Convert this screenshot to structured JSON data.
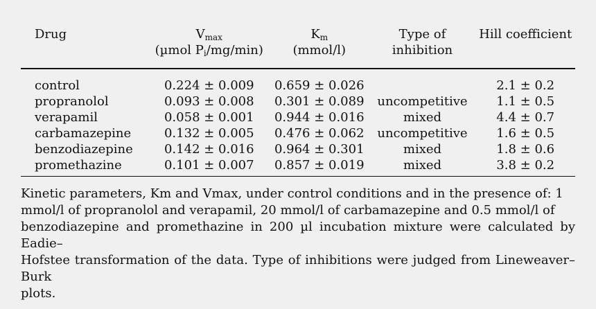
{
  "table": {
    "headers": {
      "drug": "Drug",
      "vmax_symbol": "V",
      "vmax_sub": "max",
      "vmax_unit": "(µmol P",
      "vmax_unit_sub": "i",
      "vmax_unit_tail": "/mg/min)",
      "km_symbol": "K",
      "km_sub": "m",
      "km_unit": "(mmol/l)",
      "type_line1": "Type of",
      "type_line2": "inhibition",
      "hill": "Hill coefficient"
    },
    "rows": [
      {
        "drug": "control",
        "vmax": "0.224 ± 0.009",
        "km": "0.659 ± 0.026",
        "type": "",
        "hill": "2.1 ± 0.2"
      },
      {
        "drug": "propranolol",
        "vmax": "0.093 ± 0.008",
        "km": "0.301 ± 0.089",
        "type": "uncompetitive",
        "hill": "1.1 ± 0.5"
      },
      {
        "drug": "verapamil",
        "vmax": "0.058 ± 0.001",
        "km": "0.944 ± 0.016",
        "type": "mixed",
        "hill": "4.4 ± 0.7"
      },
      {
        "drug": "carbamazepine",
        "vmax": "0.132 ± 0.005",
        "km": "0.476 ± 0.062",
        "type": "uncompetitive",
        "hill": "1.6 ± 0.5"
      },
      {
        "drug": "benzodiazepine",
        "vmax": "0.142 ± 0.016",
        "km": "0.964 ± 0.301",
        "type": "mixed",
        "hill": "1.8 ± 0.6"
      },
      {
        "drug": "promethazine",
        "vmax": "0.101 ± 0.007",
        "km": "0.857 ± 0.019",
        "type": "mixed",
        "hill": "3.8 ± 0.2"
      }
    ]
  },
  "caption": {
    "lines": [
      "Kinetic parameters, Km and Vmax, under control conditions and in the presence of: 1",
      "mmol/l of propranolol and verapamil, 20 mmol/l of carbamazepine and 0.5 mmol/l of",
      "benzodiazepine and promethazine in 200 µl incubation mixture were calculated by Eadie–",
      "Hofstee transformation of the data. Type of inhibitions were judged from Lineweaver–Burk",
      "plots."
    ]
  }
}
